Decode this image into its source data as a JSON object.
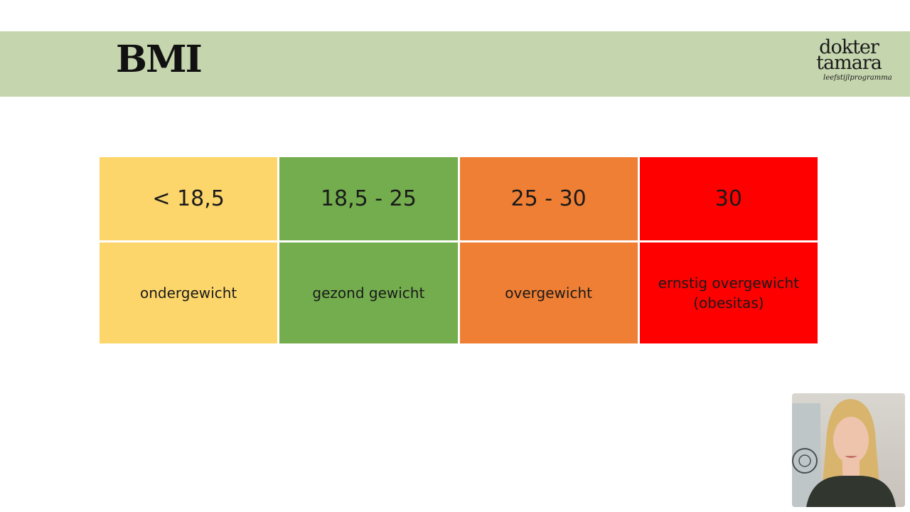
{
  "slide": {
    "title": "BMI",
    "logo": {
      "line1": "dokter",
      "line2": "tamara",
      "tagline": "leefstijlprogramma"
    }
  },
  "table": {
    "ranges": [
      "< 18,5",
      "18,5 - 25",
      "25 - 30",
      "30"
    ],
    "labels": [
      "ondergewicht",
      "gezond gewicht",
      "overgewicht",
      "ernstig overgewicht (obesitas)"
    ]
  },
  "colors": {
    "banner": "#c5d5ae",
    "underweight": "#fcd66b",
    "healthy": "#73ad4e",
    "overweight": "#ef7f34",
    "obese": "#fe0000"
  },
  "webcam": {
    "icon": "presenter-video-icon"
  }
}
